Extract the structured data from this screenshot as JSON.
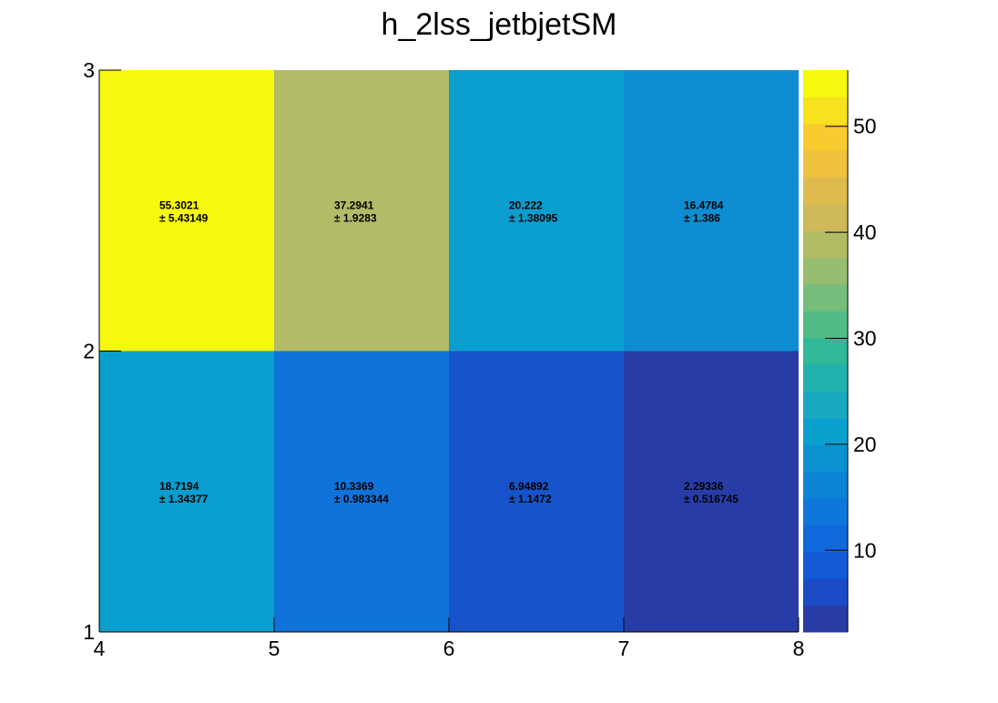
{
  "chart_data": {
    "type": "heatmap",
    "title": "h_2lss_jetbjetSM",
    "xlabel": "",
    "ylabel": "",
    "x_edges": [
      4,
      5,
      6,
      7,
      8
    ],
    "y_edges": [
      1,
      2,
      3
    ],
    "xlim": [
      4,
      8
    ],
    "ylim": [
      1,
      3
    ],
    "x_ticks": [
      4,
      5,
      6,
      7,
      8
    ],
    "y_ticks": [
      1,
      2,
      3
    ],
    "colorbar_ticks": [
      10,
      20,
      30,
      40,
      50
    ],
    "colorbar_range": [
      2.29336,
      55.3021
    ],
    "grid": false,
    "cells": [
      {
        "x": [
          4,
          5
        ],
        "y": [
          2,
          3
        ],
        "value": "55.3021",
        "error": "± 5.43149",
        "color": "#f6f80f"
      },
      {
        "x": [
          5,
          6
        ],
        "y": [
          2,
          3
        ],
        "value": "37.2941",
        "error": "± 1.9283",
        "color": "#b2bb66"
      },
      {
        "x": [
          6,
          7
        ],
        "y": [
          2,
          3
        ],
        "value": "20.222",
        "error": "± 1.38095",
        "color": "#0a9ecf"
      },
      {
        "x": [
          7,
          8
        ],
        "y": [
          2,
          3
        ],
        "value": "16.4784",
        "error": "± 1.386",
        "color": "#0e8dd2"
      },
      {
        "x": [
          4,
          5
        ],
        "y": [
          1,
          2
        ],
        "value": "18.7194",
        "error": "± 1.34377",
        "color": "#0a9ecf"
      },
      {
        "x": [
          5,
          6
        ],
        "y": [
          1,
          2
        ],
        "value": "10.3369",
        "error": "± 0.983344",
        "color": "#1073d9"
      },
      {
        "x": [
          6,
          7
        ],
        "y": [
          1,
          2
        ],
        "value": "6.94892",
        "error": "± 1.1472",
        "color": "#1754cb"
      },
      {
        "x": [
          7,
          8
        ],
        "y": [
          1,
          2
        ],
        "value": "2.29336",
        "error": "± 0.516745",
        "color": "#283ca8"
      }
    ],
    "palette": [
      "#283ca8",
      "#1b4bc6",
      "#135ad8",
      "#1068dd",
      "#0f76dc",
      "#0c84d6",
      "#0a92d2",
      "#0aa0ce",
      "#19aac0",
      "#22b2ad",
      "#2fb999",
      "#51bc88",
      "#75bd7b",
      "#97bd70",
      "#b4bb65",
      "#cfb95a",
      "#dfbb4e",
      "#eec23d",
      "#f8cb2e",
      "#f6e21d",
      "#f6f80f"
    ]
  }
}
